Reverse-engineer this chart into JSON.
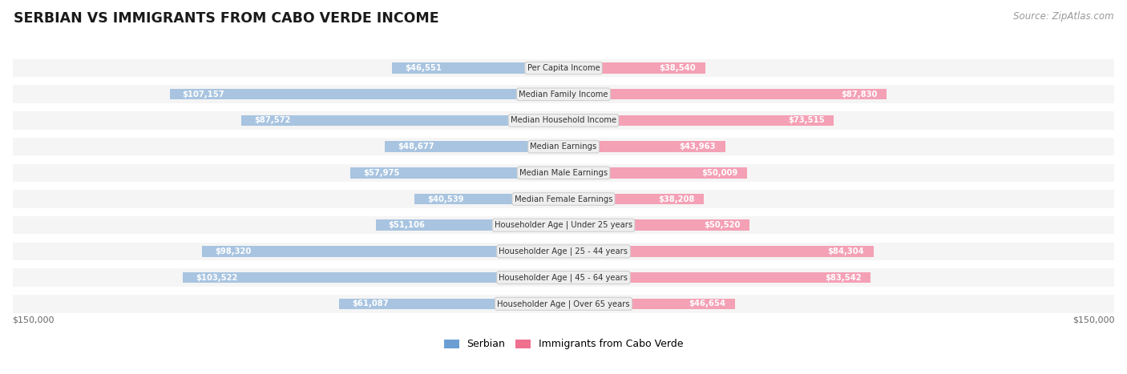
{
  "title": "SERBIAN VS IMMIGRANTS FROM CABO VERDE INCOME",
  "source": "Source: ZipAtlas.com",
  "categories": [
    "Per Capita Income",
    "Median Family Income",
    "Median Household Income",
    "Median Earnings",
    "Median Male Earnings",
    "Median Female Earnings",
    "Householder Age | Under 25 years",
    "Householder Age | 25 - 44 years",
    "Householder Age | 45 - 64 years",
    "Householder Age | Over 65 years"
  ],
  "serbian_values": [
    46551,
    107157,
    87572,
    48677,
    57975,
    40539,
    51106,
    98320,
    103522,
    61087
  ],
  "caboverde_values": [
    38540,
    87830,
    73515,
    43963,
    50009,
    38208,
    50520,
    84304,
    83542,
    46654
  ],
  "max_value": 150000,
  "serbian_color_bar": "#a8c4e0",
  "caboverde_color_bar": "#f4a0b5",
  "serbian_color_legend": "#6b9fd4",
  "caboverde_color_legend": "#f07090",
  "row_bg_color": "#f5f5f5",
  "row_bg_edge": "#ffffff",
  "label_box_color": "#eeeeee",
  "label_box_edge": "#cccccc",
  "axis_label_left": "$150,000",
  "axis_label_right": "$150,000",
  "legend_serbian": "Serbian",
  "legend_caboverde": "Immigrants from Cabo Verde",
  "inside_text_color": "#ffffff",
  "outside_text_color": "#666666",
  "inside_threshold": 30000
}
